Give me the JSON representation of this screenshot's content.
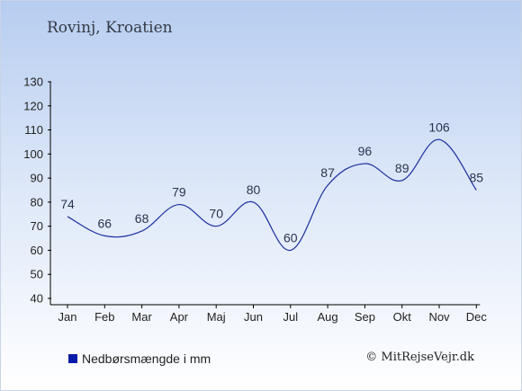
{
  "chart_data": {
    "type": "line",
    "title": "Rovinj, Kroatien",
    "categories": [
      "Jan",
      "Feb",
      "Mar",
      "Apr",
      "Maj",
      "Jun",
      "Jul",
      "Aug",
      "Sep",
      "Okt",
      "Nov",
      "Dec"
    ],
    "series": [
      {
        "name": "Nedbørsmængde i mm",
        "values": [
          74,
          66,
          68,
          79,
          70,
          80,
          60,
          87,
          96,
          89,
          106,
          85
        ],
        "color": "#1b2fa0"
      }
    ],
    "yticks": [
      40,
      50,
      60,
      70,
      80,
      90,
      100,
      110,
      120,
      130
    ],
    "ylim": [
      40,
      130
    ],
    "grid": false,
    "legend_position": "bottom-left"
  },
  "footer": {
    "copyright": "© MitRejseVejr.dk"
  },
  "colors": {
    "line": "#1b2fa0",
    "legend_swatch": "#0a1aa8",
    "axis": "#000000"
  }
}
